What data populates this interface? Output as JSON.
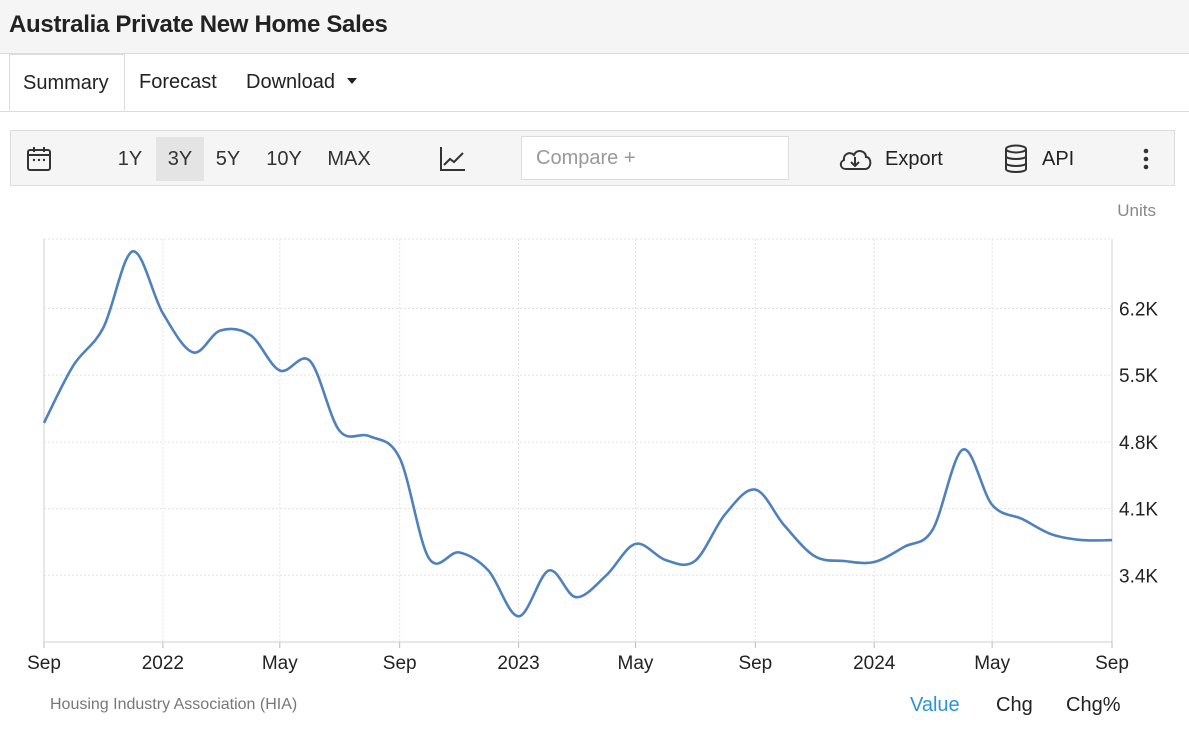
{
  "header": {
    "title": "Australia Private New Home Sales"
  },
  "tabs": [
    {
      "label": "Summary",
      "active": true
    },
    {
      "label": "Forecast",
      "active": false
    },
    {
      "label": "Download",
      "active": false
    }
  ],
  "toolbar": {
    "calendar_icon": "calendar-icon",
    "ranges": [
      {
        "label": "1Y",
        "active": false
      },
      {
        "label": "3Y",
        "active": true
      },
      {
        "label": "5Y",
        "active": false
      },
      {
        "label": "10Y",
        "active": false
      },
      {
        "label": "MAX",
        "active": false
      }
    ],
    "chart_type_icon": "line-chart-icon",
    "compare_placeholder": "Compare +",
    "export_label": "Export",
    "api_label": "API"
  },
  "footer": {
    "source": "Housing Industry Association (HIA)",
    "views": [
      {
        "label": "Value",
        "active": true
      },
      {
        "label": "Chg",
        "active": false
      },
      {
        "label": "Chg%",
        "active": false
      }
    ]
  },
  "colors": {
    "line": "#4f81bd",
    "accent": "#2a94d6"
  },
  "chart_data": {
    "type": "line",
    "ylabel": "Units",
    "ylim": [
      2700,
      6930
    ],
    "yticks": [
      3400,
      4100,
      4800,
      5500,
      6200
    ],
    "ytick_labels": [
      "3.4K",
      "4.1K",
      "4.8K",
      "5.5K",
      "6.2K"
    ],
    "xtick_labels": [
      "Sep",
      "2022",
      "May",
      "Sep",
      "2023",
      "May",
      "Sep",
      "2024",
      "May",
      "Sep"
    ],
    "xtick_dates": [
      "2021-09",
      "2022-01",
      "2022-05",
      "2022-09",
      "2023-01",
      "2023-05",
      "2023-09",
      "2024-01",
      "2024-05",
      "2024-09"
    ],
    "grid": true,
    "series": [
      {
        "name": "",
        "x": [
          "2021-09",
          "2021-10",
          "2021-11",
          "2021-12",
          "2022-01",
          "2022-02",
          "2022-03",
          "2022-04",
          "2022-05",
          "2022-06",
          "2022-07",
          "2022-08",
          "2022-09",
          "2022-10",
          "2022-11",
          "2022-12",
          "2023-01",
          "2023-02",
          "2023-03",
          "2023-04",
          "2023-05",
          "2023-06",
          "2023-07",
          "2023-08",
          "2023-09",
          "2023-10",
          "2023-11",
          "2023-12",
          "2024-01",
          "2024-02",
          "2024-03",
          "2024-04",
          "2024-05",
          "2024-06",
          "2024-07",
          "2024-08",
          "2024-09"
        ],
        "values": [
          5000,
          5600,
          6000,
          6800,
          6150,
          5740,
          5970,
          5920,
          5550,
          5650,
          4920,
          4860,
          4630,
          3580,
          3640,
          3450,
          2970,
          3450,
          3170,
          3400,
          3730,
          3560,
          3550,
          4040,
          4300,
          3920,
          3600,
          3550,
          3540,
          3700,
          3880,
          4720,
          4140,
          3990,
          3830,
          3770,
          3770
        ]
      }
    ]
  }
}
